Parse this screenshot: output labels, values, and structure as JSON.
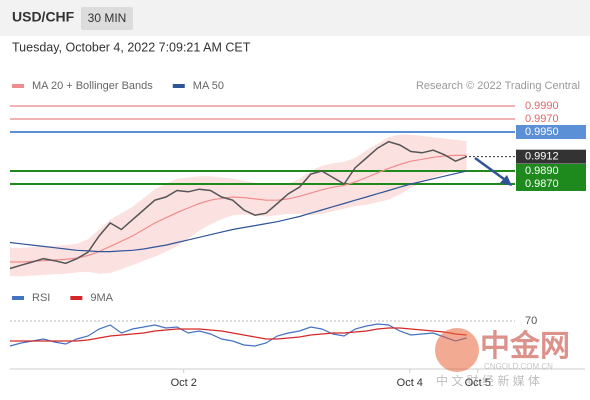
{
  "chart_data": [
    {
      "type": "line",
      "title": "USD/CHF",
      "interval": "30 MIN",
      "subtitle": "Tuesday, October 4, 2022 7:09:21 AM CET",
      "credit": "Research © 2022 Trading Central",
      "ylim": [
        0.97146,
        1.00069
      ],
      "xlim": [
        0,
        44
      ],
      "yticks": [
        {
          "value": 0.999,
          "label": "0.9990"
        },
        {
          "value": 0.997,
          "label": "0.9970"
        },
        {
          "value": 0.995,
          "label": "0.9950"
        },
        {
          "value": 0.9912,
          "label": "0.9912"
        },
        {
          "value": 0.989,
          "label": "0.9890"
        },
        {
          "value": 0.987,
          "label": "0.9870"
        }
      ],
      "ytick_colors": [
        "#e06666",
        "#e06666",
        "#5b8fd6",
        "#333333",
        "#1e8a1e",
        "#1e8a1e"
      ],
      "price": {
        "color": "#555555",
        "values": [
          0.974,
          0.9745,
          0.975,
          0.9755,
          0.9752,
          0.9748,
          0.9755,
          0.9765,
          0.979,
          0.981,
          0.98,
          0.9815,
          0.983,
          0.9845,
          0.985,
          0.986,
          0.9858,
          0.9862,
          0.986,
          0.985,
          0.9845,
          0.983,
          0.9822,
          0.9825,
          0.984,
          0.9855,
          0.9865,
          0.9885,
          0.989,
          0.988,
          0.987,
          0.9895,
          0.991,
          0.9925,
          0.9935,
          0.993,
          0.992,
          0.9918,
          0.9922,
          0.9915,
          0.9905,
          0.9912
        ]
      },
      "series": [
        {
          "name": "MA 20 + Bollinger Bands",
          "color": "#f08c8c",
          "values": [
            0.975,
            0.975,
            0.9751,
            0.9752,
            0.9753,
            0.9754,
            0.9756,
            0.976,
            0.9766,
            0.9774,
            0.9782,
            0.979,
            0.98,
            0.981,
            0.9818,
            0.9826,
            0.9833,
            0.984,
            0.9845,
            0.9848,
            0.985,
            0.9849,
            0.9847,
            0.9845,
            0.9845,
            0.9847,
            0.9851,
            0.9856,
            0.9861,
            0.9865,
            0.9868,
            0.9873,
            0.988,
            0.9887,
            0.9894,
            0.99,
            0.9905,
            0.9908,
            0.9911,
            0.9913,
            0.9914,
            0.9914
          ],
          "upper": [
            0.9772,
            0.9772,
            0.9773,
            0.9774,
            0.9775,
            0.9776,
            0.9778,
            0.9785,
            0.98,
            0.9815,
            0.9825,
            0.9835,
            0.9848,
            0.9862,
            0.987,
            0.9878,
            0.988,
            0.9882,
            0.9882,
            0.988,
            0.9878,
            0.9875,
            0.9872,
            0.987,
            0.9868,
            0.987,
            0.9878,
            0.989,
            0.9898,
            0.9902,
            0.9904,
            0.991,
            0.9922,
            0.9932,
            0.9942,
            0.9946,
            0.9946,
            0.9944,
            0.9942,
            0.994,
            0.9938,
            0.9936
          ],
          "lower": [
            0.9728,
            0.9728,
            0.9729,
            0.973,
            0.9731,
            0.9732,
            0.9734,
            0.9735,
            0.9732,
            0.9733,
            0.9739,
            0.9745,
            0.9752,
            0.9758,
            0.9766,
            0.9774,
            0.9786,
            0.9798,
            0.9808,
            0.9816,
            0.9822,
            0.9823,
            0.9822,
            0.982,
            0.9822,
            0.9824,
            0.9824,
            0.9822,
            0.9824,
            0.9828,
            0.9832,
            0.9836,
            0.9838,
            0.9842,
            0.9846,
            0.9854,
            0.9864,
            0.9872,
            0.988,
            0.9886,
            0.989,
            0.9892
          ]
        },
        {
          "name": "MA 50",
          "color": "#2f5597",
          "values": [
            0.978,
            0.9778,
            0.9776,
            0.9774,
            0.9772,
            0.977,
            0.9768,
            0.9767,
            0.9766,
            0.9766,
            0.9767,
            0.9768,
            0.977,
            0.9773,
            0.9776,
            0.978,
            0.9784,
            0.9788,
            0.9792,
            0.9796,
            0.98,
            0.9803,
            0.9806,
            0.9809,
            0.9812,
            0.9816,
            0.982,
            0.9825,
            0.983,
            0.9835,
            0.984,
            0.9845,
            0.985,
            0.9855,
            0.986,
            0.9865,
            0.987,
            0.9874,
            0.9878,
            0.9882,
            0.9886,
            0.989
          ]
        }
      ]
    },
    {
      "type": "line",
      "ylim": [
        20,
        80
      ],
      "yticks": [
        70
      ],
      "xlim": [
        0,
        44
      ],
      "xticks": [
        {
          "value": 15.6,
          "label": "Oct 2"
        },
        {
          "value": 35.9,
          "label": "Oct 4"
        },
        {
          "value": 42,
          "label": "Oct 5"
        }
      ],
      "series": [
        {
          "name": "RSI",
          "color": "#4472c4",
          "values": [
            45,
            48,
            50,
            52,
            49,
            47,
            52,
            55,
            62,
            66,
            58,
            62,
            64,
            66,
            63,
            64,
            58,
            60,
            57,
            52,
            50,
            46,
            45,
            48,
            55,
            58,
            60,
            64,
            62,
            57,
            55,
            62,
            65,
            67,
            66,
            60,
            56,
            57,
            58,
            54,
            50,
            53
          ]
        },
        {
          "name": "9MA",
          "color": "#d62728",
          "values": [
            50,
            50,
            50,
            50,
            50,
            50,
            50,
            51,
            53,
            55,
            56,
            57,
            58,
            60,
            61,
            62,
            62,
            62,
            61,
            60,
            58,
            56,
            54,
            52,
            52,
            53,
            54,
            56,
            57,
            58,
            58,
            59,
            60,
            62,
            63,
            63,
            62,
            61,
            60,
            59,
            57,
            56
          ]
        }
      ]
    }
  ],
  "watermark": {
    "logo": "中金网",
    "site": "CNGOLD.COM.CN",
    "slogan": "中 文 财 经 新 媒 体"
  }
}
